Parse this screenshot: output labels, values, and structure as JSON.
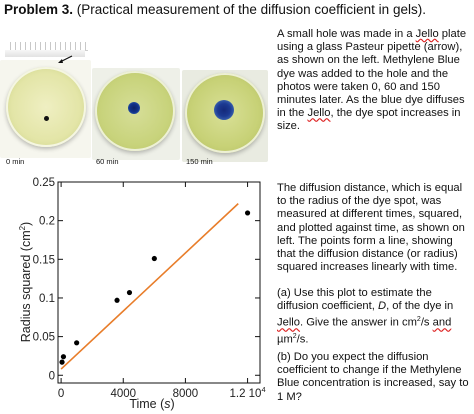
{
  "header": {
    "problem_label": "Problem 3.",
    "problem_desc": " (Practical measurement of the diffusion coefficient in gels)."
  },
  "photos": {
    "labels": [
      "0 min",
      "60 min",
      "150 min"
    ],
    "colors": {
      "jello": "#e3e5a7",
      "dye": "#10318a"
    }
  },
  "text": {
    "p1_a": "A small hole was made in a ",
    "p1_jello1": "Jello",
    "p1_b": " plate using a glass Pasteur pipette (arrow), as shown on the left. Methylene Blue dye was added to the hole and the photos were taken 0, 60 and 150 minutes later. As the blue dye diffuses in the ",
    "p1_jello2": "Jello",
    "p1_c": ", the dye spot increases in size.",
    "p2": "The diffusion distance, which is equal to the radius of the dye spot, was measured at different times, squared, and plotted against time, as shown on left. The points form a line, showing that the diffusion distance (or radius) squared increases linearly with time.",
    "p3_a": "(a) Use this plot to estimate the diffusion coefficient, ",
    "p3_d": "D",
    "p3_b": ", of the dye in ",
    "p3_jello": "Jello",
    "p3_c": ". Give the answer in cm",
    "p3_sup1": "2",
    "p3_d2": "/s ",
    "p3_and": "and",
    "p3_mu": " µm",
    "p3_sup2": "2",
    "p3_e": "/s.",
    "p4": "(b) Do you expect the diffusion coefficient to change if the Methylene Blue concentration is increased, say to 1 M?"
  },
  "chart_data": {
    "type": "scatter",
    "ylabel_main": "Radius squared (cm",
    "ylabel_sup": "2",
    "ylabel_close": ")",
    "xlabel_main": "Time (",
    "xlabel_var": "s",
    "xlabel_close": ")",
    "xlim": [
      -200,
      12800
    ],
    "ylim": [
      -0.01,
      0.25
    ],
    "x_ticks": [
      {
        "value": 0,
        "label": "0"
      },
      {
        "value": 4000,
        "label": "4000"
      },
      {
        "value": 8000,
        "label": "8000"
      },
      {
        "value": 12000,
        "label": "1.2 10"
      }
    ],
    "x_tick_exp": "4",
    "y_ticks": [
      {
        "value": 0,
        "label": "0"
      },
      {
        "value": 0.05,
        "label": "0.05"
      },
      {
        "value": 0.1,
        "label": "0.1"
      },
      {
        "value": 0.15,
        "label": "0.15"
      },
      {
        "value": 0.2,
        "label": "0.2"
      },
      {
        "value": 0.25,
        "label": "0.25"
      }
    ],
    "points": [
      {
        "x": 60,
        "y": 0.017
      },
      {
        "x": 150,
        "y": 0.024
      },
      {
        "x": 1000,
        "y": 0.042
      },
      {
        "x": 3600,
        "y": 0.097
      },
      {
        "x": 4400,
        "y": 0.107
      },
      {
        "x": 6000,
        "y": 0.151
      },
      {
        "x": 12000,
        "y": 0.21
      }
    ],
    "fit_line": {
      "x0": 0,
      "y0": 0.008,
      "x1": 11400,
      "y1": 0.222,
      "color": "#e87d2a"
    }
  }
}
